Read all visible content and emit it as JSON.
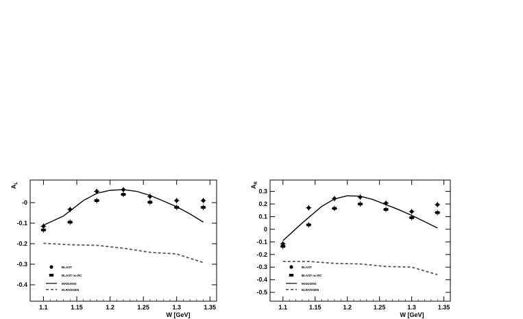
{
  "chart_data": [
    {
      "type": "scatter",
      "ylabel": "A",
      "ylabel_sub": "L",
      "xlabel": "W [GeV]",
      "xlim": [
        1.08,
        1.36
      ],
      "ylim": [
        -0.48,
        0.11
      ],
      "xticks": [
        "1.1",
        "1.15",
        "1.2",
        "1.25",
        "1.3",
        "1.35"
      ],
      "xtick_values": [
        1.1,
        1.15,
        1.2,
        1.25,
        1.3,
        1.35
      ],
      "yticks": [
        "-0",
        "-0.1",
        "-0.2",
        "-0.3",
        "-0.4"
      ],
      "ytick_values": [
        0.0,
        -0.1,
        -0.2,
        -0.3,
        -0.4
      ],
      "legend": {
        "position": "bottom-left"
      },
      "series": [
        {
          "name": "BLAST",
          "kind": "points",
          "marker": "circle",
          "x": [
            1.1,
            1.14,
            1.18,
            1.22,
            1.26,
            1.3,
            1.34
          ],
          "y": [
            -0.115,
            -0.033,
            0.055,
            0.063,
            0.03,
            0.01,
            0.01
          ]
        },
        {
          "name": "BLAST no RC",
          "kind": "points",
          "marker": "square",
          "x": [
            1.1,
            1.14,
            1.18,
            1.22,
            1.26,
            1.3,
            1.34
          ],
          "y": [
            -0.133,
            -0.095,
            0.01,
            0.04,
            0.002,
            -0.023,
            -0.023
          ]
        },
        {
          "name": "MAID2003",
          "kind": "line",
          "style": "solid",
          "x": [
            1.1,
            1.13,
            1.16,
            1.18,
            1.2,
            1.22,
            1.24,
            1.26,
            1.28,
            1.3,
            1.32,
            1.34
          ],
          "y": [
            -0.11,
            -0.065,
            0.01,
            0.045,
            0.06,
            0.063,
            0.055,
            0.035,
            0.008,
            -0.02,
            -0.055,
            -0.095
          ]
        },
        {
          "name": "ELRADGEN",
          "kind": "line",
          "style": "dashed",
          "x": [
            1.1,
            1.14,
            1.18,
            1.22,
            1.26,
            1.3,
            1.34
          ],
          "y": [
            -0.198,
            -0.205,
            -0.208,
            -0.222,
            -0.242,
            -0.25,
            -0.292
          ]
        }
      ]
    },
    {
      "type": "scatter",
      "ylabel": "A",
      "ylabel_sub": "R",
      "xlabel": "W [GeV]",
      "xlim": [
        1.08,
        1.36
      ],
      "ylim": [
        -0.57,
        0.39
      ],
      "xticks": [
        "1.1",
        "1.15",
        "1.2",
        "1.25",
        "1.3",
        "1.35"
      ],
      "xtick_values": [
        1.1,
        1.15,
        1.2,
        1.25,
        1.3,
        1.35
      ],
      "yticks": [
        "0.3",
        "0.2",
        "0.1",
        "0",
        "-0.1",
        "-0.2",
        "-0.3",
        "-0.4",
        "-0.5"
      ],
      "ytick_values": [
        0.3,
        0.2,
        0.1,
        0.0,
        -0.1,
        -0.2,
        -0.3,
        -0.4,
        -0.5
      ],
      "legend": {
        "position": "bottom-left"
      },
      "series": [
        {
          "name": "BLAST",
          "kind": "points",
          "marker": "circle",
          "x": [
            1.1,
            1.14,
            1.18,
            1.22,
            1.26,
            1.3,
            1.34
          ],
          "y": [
            -0.115,
            0.17,
            0.243,
            0.255,
            0.207,
            0.14,
            0.195
          ]
        },
        {
          "name": "BLAST no RC",
          "kind": "points",
          "marker": "square",
          "x": [
            1.1,
            1.14,
            1.18,
            1.22,
            1.26,
            1.3,
            1.34
          ],
          "y": [
            -0.135,
            0.035,
            0.165,
            0.2,
            0.157,
            0.092,
            0.132
          ]
        },
        {
          "name": "MAID2003",
          "kind": "line",
          "style": "solid",
          "x": [
            1.1,
            1.13,
            1.16,
            1.18,
            1.2,
            1.22,
            1.24,
            1.26,
            1.28,
            1.3,
            1.32,
            1.34
          ],
          "y": [
            -0.09,
            0.05,
            0.18,
            0.24,
            0.265,
            0.262,
            0.235,
            0.195,
            0.155,
            0.11,
            0.06,
            0.01
          ]
        },
        {
          "name": "ELRADGEN",
          "kind": "line",
          "style": "dashed",
          "x": [
            1.1,
            1.14,
            1.18,
            1.22,
            1.26,
            1.3,
            1.34
          ],
          "y": [
            -0.255,
            -0.255,
            -0.27,
            -0.275,
            -0.295,
            -0.3,
            -0.36
          ]
        }
      ]
    }
  ]
}
